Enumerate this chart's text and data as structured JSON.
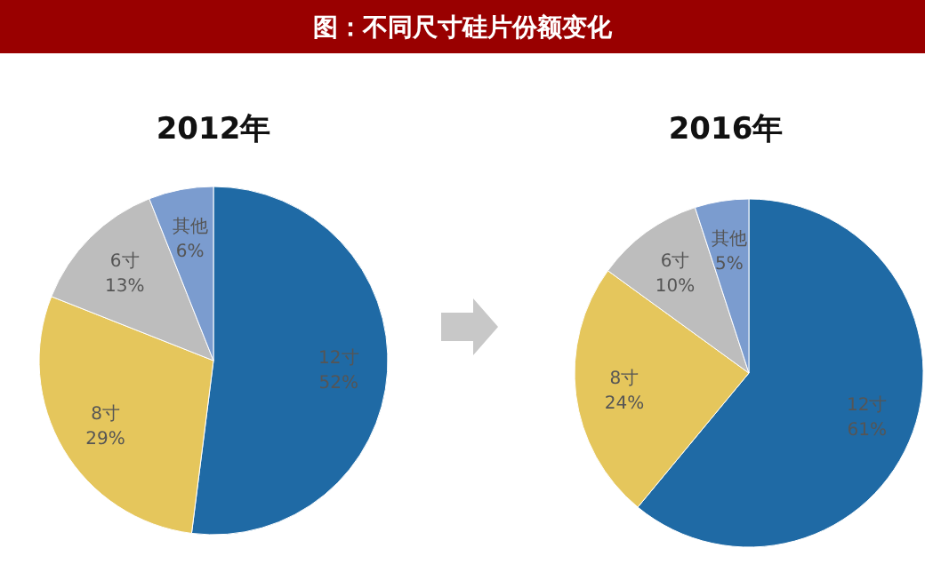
{
  "chart_data": [
    {
      "type": "other",
      "title": "图：不同尺寸硅片份额变化"
    },
    {
      "type": "pie",
      "title": "2012年",
      "categories": [
        "12寸",
        "8寸",
        "6寸",
        "其他"
      ],
      "values": [
        52,
        29,
        13,
        6
      ],
      "colors": [
        "#1f6aa5",
        "#e5c65c",
        "#bdbdbd",
        "#7b9ccf"
      ],
      "value_labels": [
        "52%",
        "29%",
        "13%",
        "6%"
      ]
    },
    {
      "type": "pie",
      "title": "2016年",
      "categories": [
        "12寸",
        "8寸",
        "6寸",
        "其他"
      ],
      "values": [
        61,
        24,
        10,
        5
      ],
      "colors": [
        "#1f6aa5",
        "#e5c65c",
        "#bdbdbd",
        "#7b9ccf"
      ],
      "value_labels": [
        "61%",
        "24%",
        "10%",
        "5%"
      ]
    }
  ]
}
